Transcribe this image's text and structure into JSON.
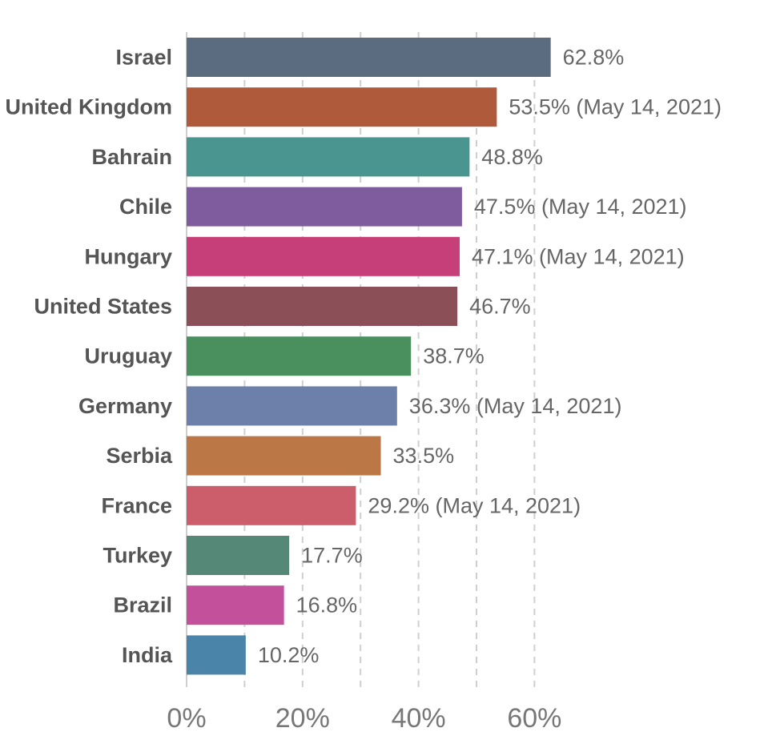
{
  "chart_data": {
    "type": "bar",
    "orientation": "horizontal",
    "title": "",
    "xlabel": "",
    "ylabel": "",
    "xlim": [
      0,
      68
    ],
    "grid": true,
    "x_ticks": [
      {
        "value": 0,
        "label": "0%"
      },
      {
        "value": 20,
        "label": "20%"
      },
      {
        "value": 40,
        "label": "40%"
      },
      {
        "value": 60,
        "label": "60%"
      }
    ],
    "categories": [
      "Israel",
      "United Kingdom",
      "Bahrain",
      "Chile",
      "Hungary",
      "United States",
      "Uruguay",
      "Germany",
      "Serbia",
      "France",
      "Turkey",
      "Brazil",
      "India"
    ],
    "values": [
      62.8,
      53.5,
      48.8,
      47.5,
      47.1,
      46.7,
      38.7,
      36.3,
      33.5,
      29.2,
      17.7,
      16.8,
      10.2
    ],
    "value_labels": [
      "62.8%",
      "53.5% (May 14, 2021)",
      "48.8%",
      "47.5% (May 14, 2021)",
      "47.1% (May 14, 2021)",
      "46.7%",
      "38.7%",
      "36.3% (May 14, 2021)",
      "33.5%",
      "29.2% (May 14, 2021)",
      "17.7%",
      "16.8%",
      "10.2%"
    ],
    "colors": [
      "#5b6b80",
      "#b05a3c",
      "#4a9590",
      "#7e5c9e",
      "#c63f78",
      "#8b5057",
      "#4a8f5e",
      "#6d80a9",
      "#bb7846",
      "#cc5e6b",
      "#568878",
      "#c2509a",
      "#4b84a9"
    ]
  }
}
